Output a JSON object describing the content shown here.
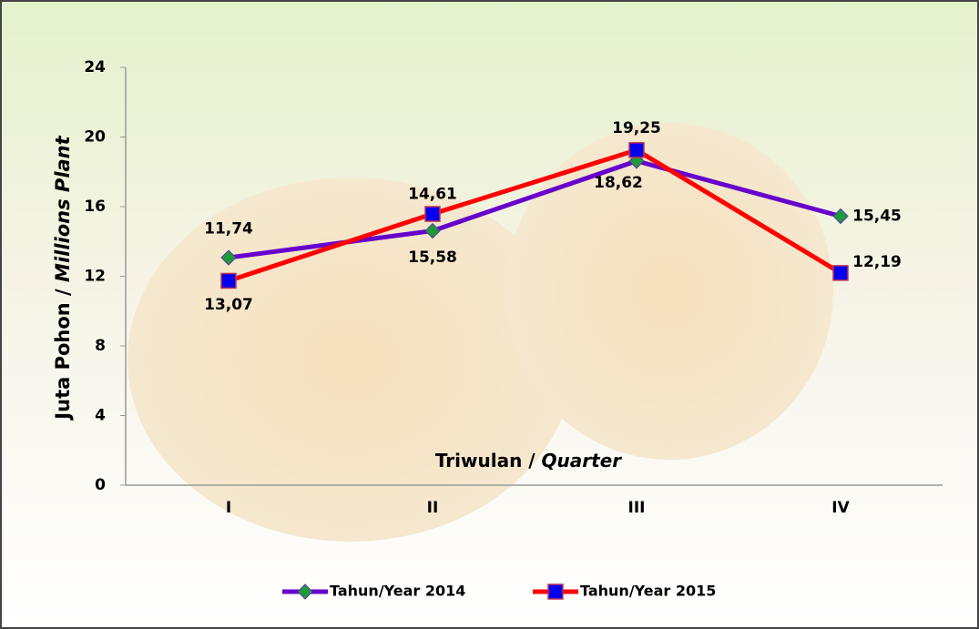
{
  "chart_data": {
    "type": "line",
    "x_label": {
      "main": "Triwulan / ",
      "italic": "Quarter"
    },
    "y_label": {
      "main": "Juta Pohon / ",
      "italic": "Millions Plant"
    },
    "categories": [
      "I",
      "II",
      "III",
      "IV"
    ],
    "series": [
      {
        "name": "Tahun/Year 2014",
        "color": "#6600cc",
        "marker_color": "#1e9a3a",
        "marker": "diamond",
        "values": [
          13.07,
          14.61,
          18.62,
          15.45
        ],
        "value_labels": [
          "13,07",
          "14,61",
          "18,62",
          "15,45"
        ]
      },
      {
        "name": "Tahun/Year 2015",
        "color": "#ff0000",
        "marker_color": "#0000ee",
        "marker": "square",
        "values": [
          11.74,
          15.58,
          19.25,
          12.19
        ],
        "value_labels": [
          "11,74",
          "15,58",
          "19,25",
          "12,19"
        ]
      }
    ],
    "ylim": [
      0,
      24
    ],
    "yticks": [
      0,
      4,
      8,
      12,
      16,
      20,
      24
    ],
    "grid": false
  }
}
